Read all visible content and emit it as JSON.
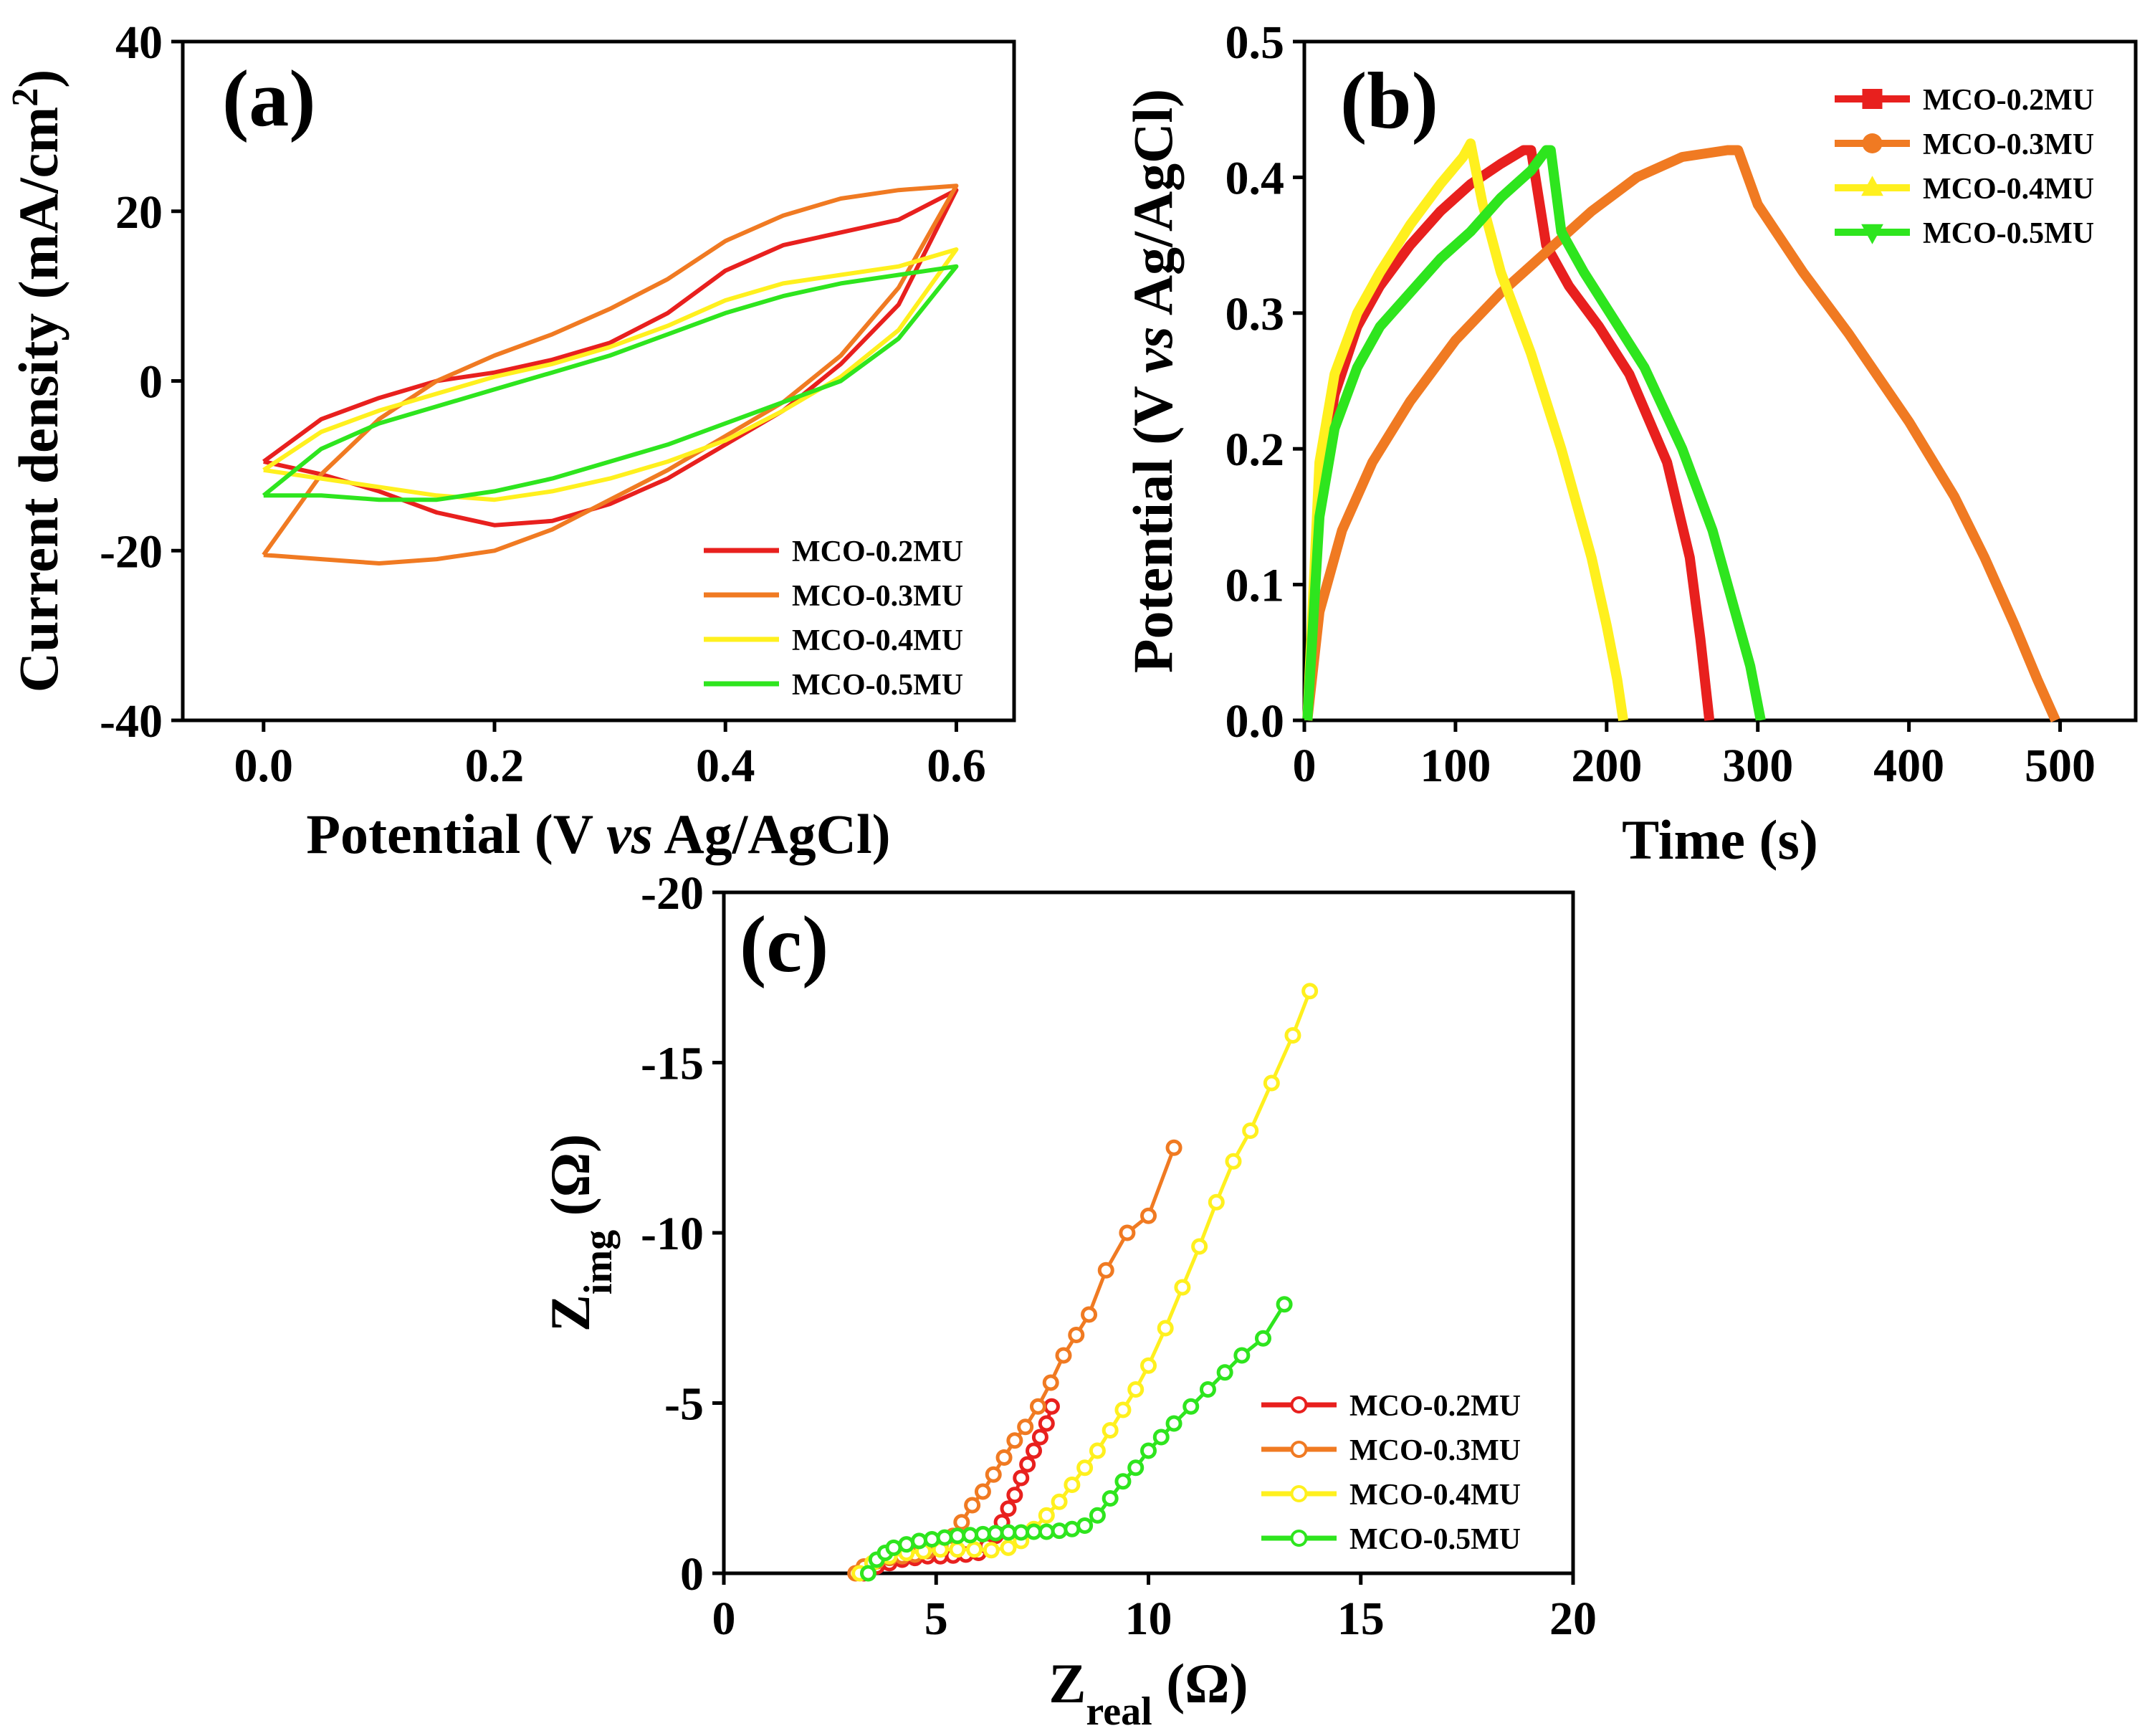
{
  "chart_data": [
    {
      "id": "a",
      "type": "line",
      "panel_label": "(a)",
      "xlabel": {
        "pre": "Potential (V ",
        "italic": "vs",
        "post": " Ag/AgCl)"
      },
      "ylabel": {
        "text": "Current density (mA/cm",
        "sup": "2",
        "close": ")"
      },
      "xlim": [
        -0.07,
        0.65
      ],
      "ylim": [
        -40,
        40
      ],
      "xticks": [
        0.0,
        0.2,
        0.4,
        0.6
      ],
      "xtick_labels": [
        "0.0",
        "0.2",
        "0.4",
        "0.6"
      ],
      "yticks": [
        -40,
        -20,
        0,
        20,
        40
      ],
      "ytick_labels": [
        "-40",
        "-20",
        "0",
        "20",
        "40"
      ],
      "legend_position": "bottom-right",
      "series": [
        {
          "name": "MCO-0.2MU",
          "color": "#e8201e",
          "x": [
            0.0,
            0.05,
            0.1,
            0.15,
            0.2,
            0.25,
            0.3,
            0.35,
            0.4,
            0.45,
            0.5,
            0.55,
            0.6,
            0.55,
            0.5,
            0.45,
            0.4,
            0.35,
            0.3,
            0.25,
            0.2,
            0.15,
            0.1,
            0.05,
            0.0
          ],
          "y": [
            -9.5,
            -4.5,
            -2,
            0,
            1,
            2.5,
            4.5,
            8,
            13,
            16,
            17.5,
            19,
            22.5,
            9,
            2,
            -3.5,
            -7.5,
            -11.5,
            -14.5,
            -16.5,
            -17,
            -15.5,
            -13,
            -11,
            -9.5
          ]
        },
        {
          "name": "MCO-0.3MU",
          "color": "#f07a22",
          "x": [
            0.0,
            0.05,
            0.1,
            0.15,
            0.2,
            0.25,
            0.3,
            0.35,
            0.4,
            0.45,
            0.5,
            0.55,
            0.6,
            0.55,
            0.5,
            0.45,
            0.4,
            0.35,
            0.3,
            0.25,
            0.2,
            0.15,
            0.1,
            0.05,
            0.0
          ],
          "y": [
            -20.5,
            -11,
            -4.5,
            0,
            3,
            5.5,
            8.5,
            12,
            16.5,
            19.5,
            21.5,
            22.5,
            23,
            11,
            3,
            -2.5,
            -6.5,
            -10.5,
            -14,
            -17.5,
            -20,
            -21,
            -21.5,
            -21,
            -20.5
          ]
        },
        {
          "name": "MCO-0.4MU",
          "color": "#fff01e",
          "x": [
            0.0,
            0.05,
            0.1,
            0.15,
            0.2,
            0.25,
            0.3,
            0.35,
            0.4,
            0.45,
            0.5,
            0.55,
            0.6,
            0.55,
            0.5,
            0.45,
            0.4,
            0.35,
            0.3,
            0.25,
            0.2,
            0.15,
            0.1,
            0.05,
            0.0
          ],
          "y": [
            -10.5,
            -6,
            -3.5,
            -1.5,
            0.5,
            2,
            4,
            6.5,
            9.5,
            11.5,
            12.5,
            13.5,
            15.5,
            6,
            0.5,
            -3.5,
            -7,
            -9.5,
            -11.5,
            -13,
            -14,
            -13.5,
            -12.5,
            -11.5,
            -10.5
          ]
        },
        {
          "name": "MCO-0.5MU",
          "color": "#2ee51e",
          "x": [
            0.0,
            0.05,
            0.1,
            0.15,
            0.2,
            0.25,
            0.3,
            0.35,
            0.4,
            0.45,
            0.5,
            0.55,
            0.6,
            0.55,
            0.5,
            0.45,
            0.4,
            0.35,
            0.3,
            0.25,
            0.2,
            0.15,
            0.1,
            0.05,
            0.0
          ],
          "y": [
            -13.5,
            -8,
            -5,
            -3,
            -1,
            1,
            3,
            5.5,
            8,
            10,
            11.5,
            12.5,
            13.5,
            5,
            0,
            -2.5,
            -5,
            -7.5,
            -9.5,
            -11.5,
            -13,
            -14,
            -14,
            -13.5,
            -13.5
          ]
        }
      ]
    },
    {
      "id": "b",
      "type": "line",
      "panel_label": "(b)",
      "xlabel": {
        "text": "Time (s)"
      },
      "ylabel": {
        "pre": "Potential (V ",
        "italic": "vs",
        "post": " Ag/AgCl)"
      },
      "xlim": [
        0,
        550
      ],
      "ylim": [
        0,
        0.5
      ],
      "xticks": [
        0,
        100,
        200,
        300,
        400,
        500
      ],
      "xtick_labels": [
        "0",
        "100",
        "200",
        "300",
        "400",
        "500"
      ],
      "yticks": [
        0.0,
        0.1,
        0.2,
        0.3,
        0.4,
        0.5
      ],
      "ytick_labels": [
        "0.0",
        "0.1",
        "0.2",
        "0.3",
        "0.4",
        "0.5"
      ],
      "legend_position": "top-right",
      "series": [
        {
          "name": "MCO-0.2MU",
          "color": "#e8201e",
          "marker": "square",
          "x": [
            2,
            10,
            20,
            35,
            50,
            70,
            90,
            110,
            130,
            145,
            150,
            160,
            175,
            195,
            215,
            240,
            255,
            262,
            268
          ],
          "y": [
            0,
            0.17,
            0.24,
            0.29,
            0.32,
            0.35,
            0.375,
            0.395,
            0.41,
            0.42,
            0.42,
            0.35,
            0.32,
            0.29,
            0.255,
            0.19,
            0.12,
            0.06,
            0
          ]
        },
        {
          "name": "MCO-0.3MU",
          "color": "#f07a22",
          "marker": "circle",
          "x": [
            2,
            10,
            25,
            45,
            70,
            100,
            130,
            160,
            190,
            220,
            250,
            280,
            287,
            300,
            330,
            360,
            400,
            430,
            450,
            470,
            485,
            497
          ],
          "y": [
            0,
            0.08,
            0.14,
            0.19,
            0.235,
            0.28,
            0.315,
            0.345,
            0.375,
            0.4,
            0.415,
            0.42,
            0.42,
            0.38,
            0.33,
            0.285,
            0.22,
            0.165,
            0.12,
            0.07,
            0.03,
            0
          ]
        },
        {
          "name": "MCO-0.4MU",
          "color": "#fff01e",
          "marker": "triangle-up",
          "x": [
            2,
            10,
            20,
            35,
            50,
            70,
            90,
            105,
            110,
            118,
            130,
            150,
            170,
            190,
            200,
            207,
            211
          ],
          "y": [
            0,
            0.19,
            0.255,
            0.3,
            0.33,
            0.365,
            0.395,
            0.415,
            0.425,
            0.38,
            0.33,
            0.27,
            0.2,
            0.12,
            0.07,
            0.03,
            0
          ]
        },
        {
          "name": "MCO-0.5MU",
          "color": "#2ee51e",
          "marker": "triangle-down",
          "x": [
            2,
            10,
            20,
            35,
            50,
            70,
            90,
            110,
            130,
            150,
            160,
            163,
            170,
            185,
            205,
            225,
            250,
            270,
            285,
            295,
            302
          ],
          "y": [
            0,
            0.15,
            0.215,
            0.26,
            0.29,
            0.315,
            0.34,
            0.36,
            0.385,
            0.405,
            0.42,
            0.42,
            0.36,
            0.33,
            0.295,
            0.26,
            0.2,
            0.14,
            0.08,
            0.04,
            0
          ]
        }
      ]
    },
    {
      "id": "c",
      "type": "scatter",
      "panel_label": "(c)",
      "xlabel": {
        "main": "Z",
        "sub": "real",
        "unit": " (Ω)"
      },
      "ylabel": {
        "main": "Z",
        "sub": "img",
        "unit": " (Ω)"
      },
      "xlim": [
        0,
        20
      ],
      "ylim": [
        0,
        -20
      ],
      "xticks": [
        0,
        5,
        10,
        15,
        20
      ],
      "xtick_labels": [
        "0",
        "5",
        "10",
        "15",
        "20"
      ],
      "yticks": [
        0,
        -5,
        -10,
        -15,
        -20
      ],
      "ytick_labels": [
        "0",
        "-5",
        "-10",
        "-15",
        "-20"
      ],
      "legend_position": "bottom-right",
      "series": [
        {
          "name": "MCO-0.2MU",
          "color": "#e8201e",
          "x": [
            3.3,
            3.6,
            3.9,
            4.2,
            4.5,
            4.8,
            5.1,
            5.4,
            5.7,
            6.0,
            6.2,
            6.4,
            6.55,
            6.7,
            6.85,
            7.0,
            7.15,
            7.3,
            7.45,
            7.6,
            7.72
          ],
          "y": [
            0,
            -0.2,
            -0.3,
            -0.4,
            -0.45,
            -0.5,
            -0.5,
            -0.52,
            -0.55,
            -0.6,
            -0.8,
            -1.1,
            -1.5,
            -1.9,
            -2.3,
            -2.8,
            -3.2,
            -3.6,
            -4.0,
            -4.4,
            -4.9
          ]
        },
        {
          "name": "MCO-0.3MU",
          "color": "#f07a22",
          "x": [
            3.1,
            3.3,
            3.6,
            3.9,
            4.2,
            4.5,
            4.8,
            5.1,
            5.4,
            5.6,
            5.85,
            6.1,
            6.35,
            6.6,
            6.85,
            7.1,
            7.4,
            7.7,
            8.0,
            8.3,
            8.6,
            9.0,
            9.5,
            10.0,
            10.6
          ],
          "y": [
            0,
            -0.2,
            -0.35,
            -0.45,
            -0.5,
            -0.55,
            -0.65,
            -0.8,
            -1.1,
            -1.5,
            -2.0,
            -2.4,
            -2.9,
            -3.4,
            -3.9,
            -4.3,
            -4.9,
            -5.6,
            -6.4,
            -7.0,
            -7.6,
            -8.9,
            -10.0,
            -10.5,
            -12.5
          ]
        },
        {
          "name": "MCO-0.4MU",
          "color": "#fff01e",
          "x": [
            3.2,
            3.5,
            3.9,
            4.3,
            4.7,
            5.1,
            5.5,
            5.9,
            6.3,
            6.7,
            7.0,
            7.3,
            7.6,
            7.9,
            8.2,
            8.5,
            8.8,
            9.1,
            9.4,
            9.7,
            10.0,
            10.4,
            10.8,
            11.2,
            11.6,
            12.0,
            12.4,
            12.9,
            13.4,
            13.8
          ],
          "y": [
            0,
            -0.3,
            -0.5,
            -0.6,
            -0.65,
            -0.7,
            -0.7,
            -0.7,
            -0.68,
            -0.75,
            -0.95,
            -1.3,
            -1.7,
            -2.1,
            -2.6,
            -3.1,
            -3.6,
            -4.2,
            -4.8,
            -5.4,
            -6.1,
            -7.2,
            -8.4,
            -9.6,
            -10.9,
            -12.1,
            -13.0,
            -14.4,
            -15.8,
            -17.1
          ]
        },
        {
          "name": "MCO-0.5MU",
          "color": "#2ee51e",
          "x": [
            3.4,
            3.6,
            3.8,
            4.0,
            4.3,
            4.6,
            4.9,
            5.2,
            5.5,
            5.8,
            6.1,
            6.4,
            6.7,
            7.0,
            7.3,
            7.6,
            7.9,
            8.2,
            8.5,
            8.8,
            9.1,
            9.4,
            9.7,
            10.0,
            10.3,
            10.6,
            11.0,
            11.4,
            11.8,
            12.2,
            12.7,
            13.2
          ],
          "y": [
            0,
            -0.4,
            -0.6,
            -0.75,
            -0.85,
            -0.95,
            -1.0,
            -1.05,
            -1.1,
            -1.12,
            -1.15,
            -1.18,
            -1.2,
            -1.2,
            -1.22,
            -1.22,
            -1.25,
            -1.3,
            -1.4,
            -1.7,
            -2.2,
            -2.7,
            -3.1,
            -3.6,
            -4.0,
            -4.4,
            -4.9,
            -5.4,
            -5.9,
            -6.4,
            -6.9,
            -7.9
          ]
        }
      ]
    }
  ]
}
